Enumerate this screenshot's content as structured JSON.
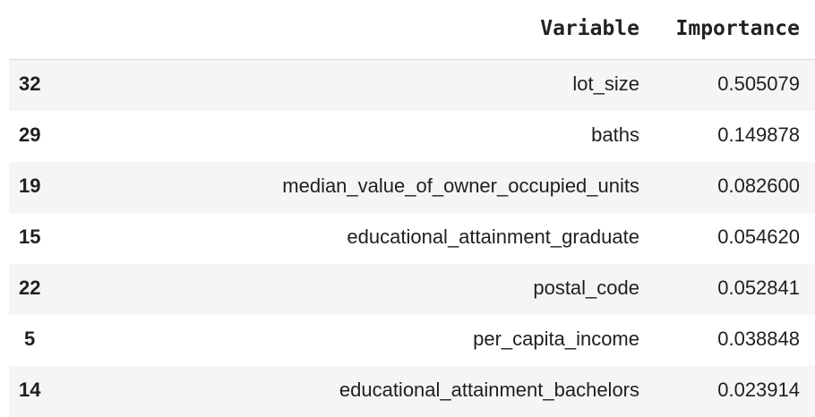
{
  "table": {
    "headers": {
      "variable": "Variable",
      "importance": "Importance"
    },
    "rows": [
      {
        "index": "32",
        "variable": "lot_size",
        "importance": "0.505079"
      },
      {
        "index": "29",
        "variable": "baths",
        "importance": "0.149878"
      },
      {
        "index": "19",
        "variable": "median_value_of_owner_occupied_units",
        "importance": "0.082600"
      },
      {
        "index": "15",
        "variable": "educational_attainment_graduate",
        "importance": "0.054620"
      },
      {
        "index": "22",
        "variable": "postal_code",
        "importance": "0.052841"
      },
      {
        "index": "5",
        "variable": "per_capita_income",
        "importance": "0.038848"
      },
      {
        "index": "14",
        "variable": "educational_attainment_bachelors",
        "importance": "0.023914"
      }
    ]
  }
}
